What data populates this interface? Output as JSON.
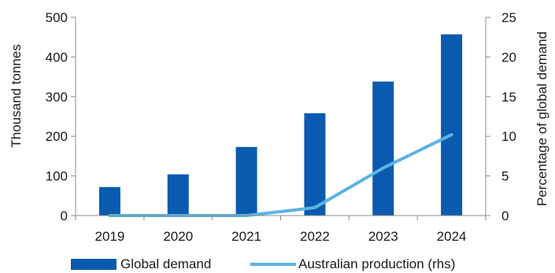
{
  "chart_data": {
    "type": "bar",
    "categories": [
      "2019",
      "2020",
      "2021",
      "2022",
      "2023",
      "2024"
    ],
    "series": [
      {
        "name": "Global demand",
        "type": "bar",
        "axis": "left",
        "values": [
          72,
          104,
          173,
          258,
          338,
          457
        ],
        "color": "#0a5bb0"
      },
      {
        "name": "Australian production (rhs)",
        "type": "line",
        "axis": "right",
        "values": [
          0,
          0,
          0,
          1,
          6,
          10.2
        ],
        "color": "#5ab4e3"
      }
    ],
    "ylabel": "Thousand tonnes",
    "y2label": "Percentage of global demand",
    "ylim": [
      0,
      500
    ],
    "y2lim": [
      0,
      25
    ],
    "yticks": [
      "0",
      "100",
      "200",
      "300",
      "400",
      "500"
    ],
    "y2ticks": [
      "0",
      "5",
      "10",
      "15",
      "20",
      "25"
    ],
    "grid": false,
    "legend_position": "bottom"
  }
}
